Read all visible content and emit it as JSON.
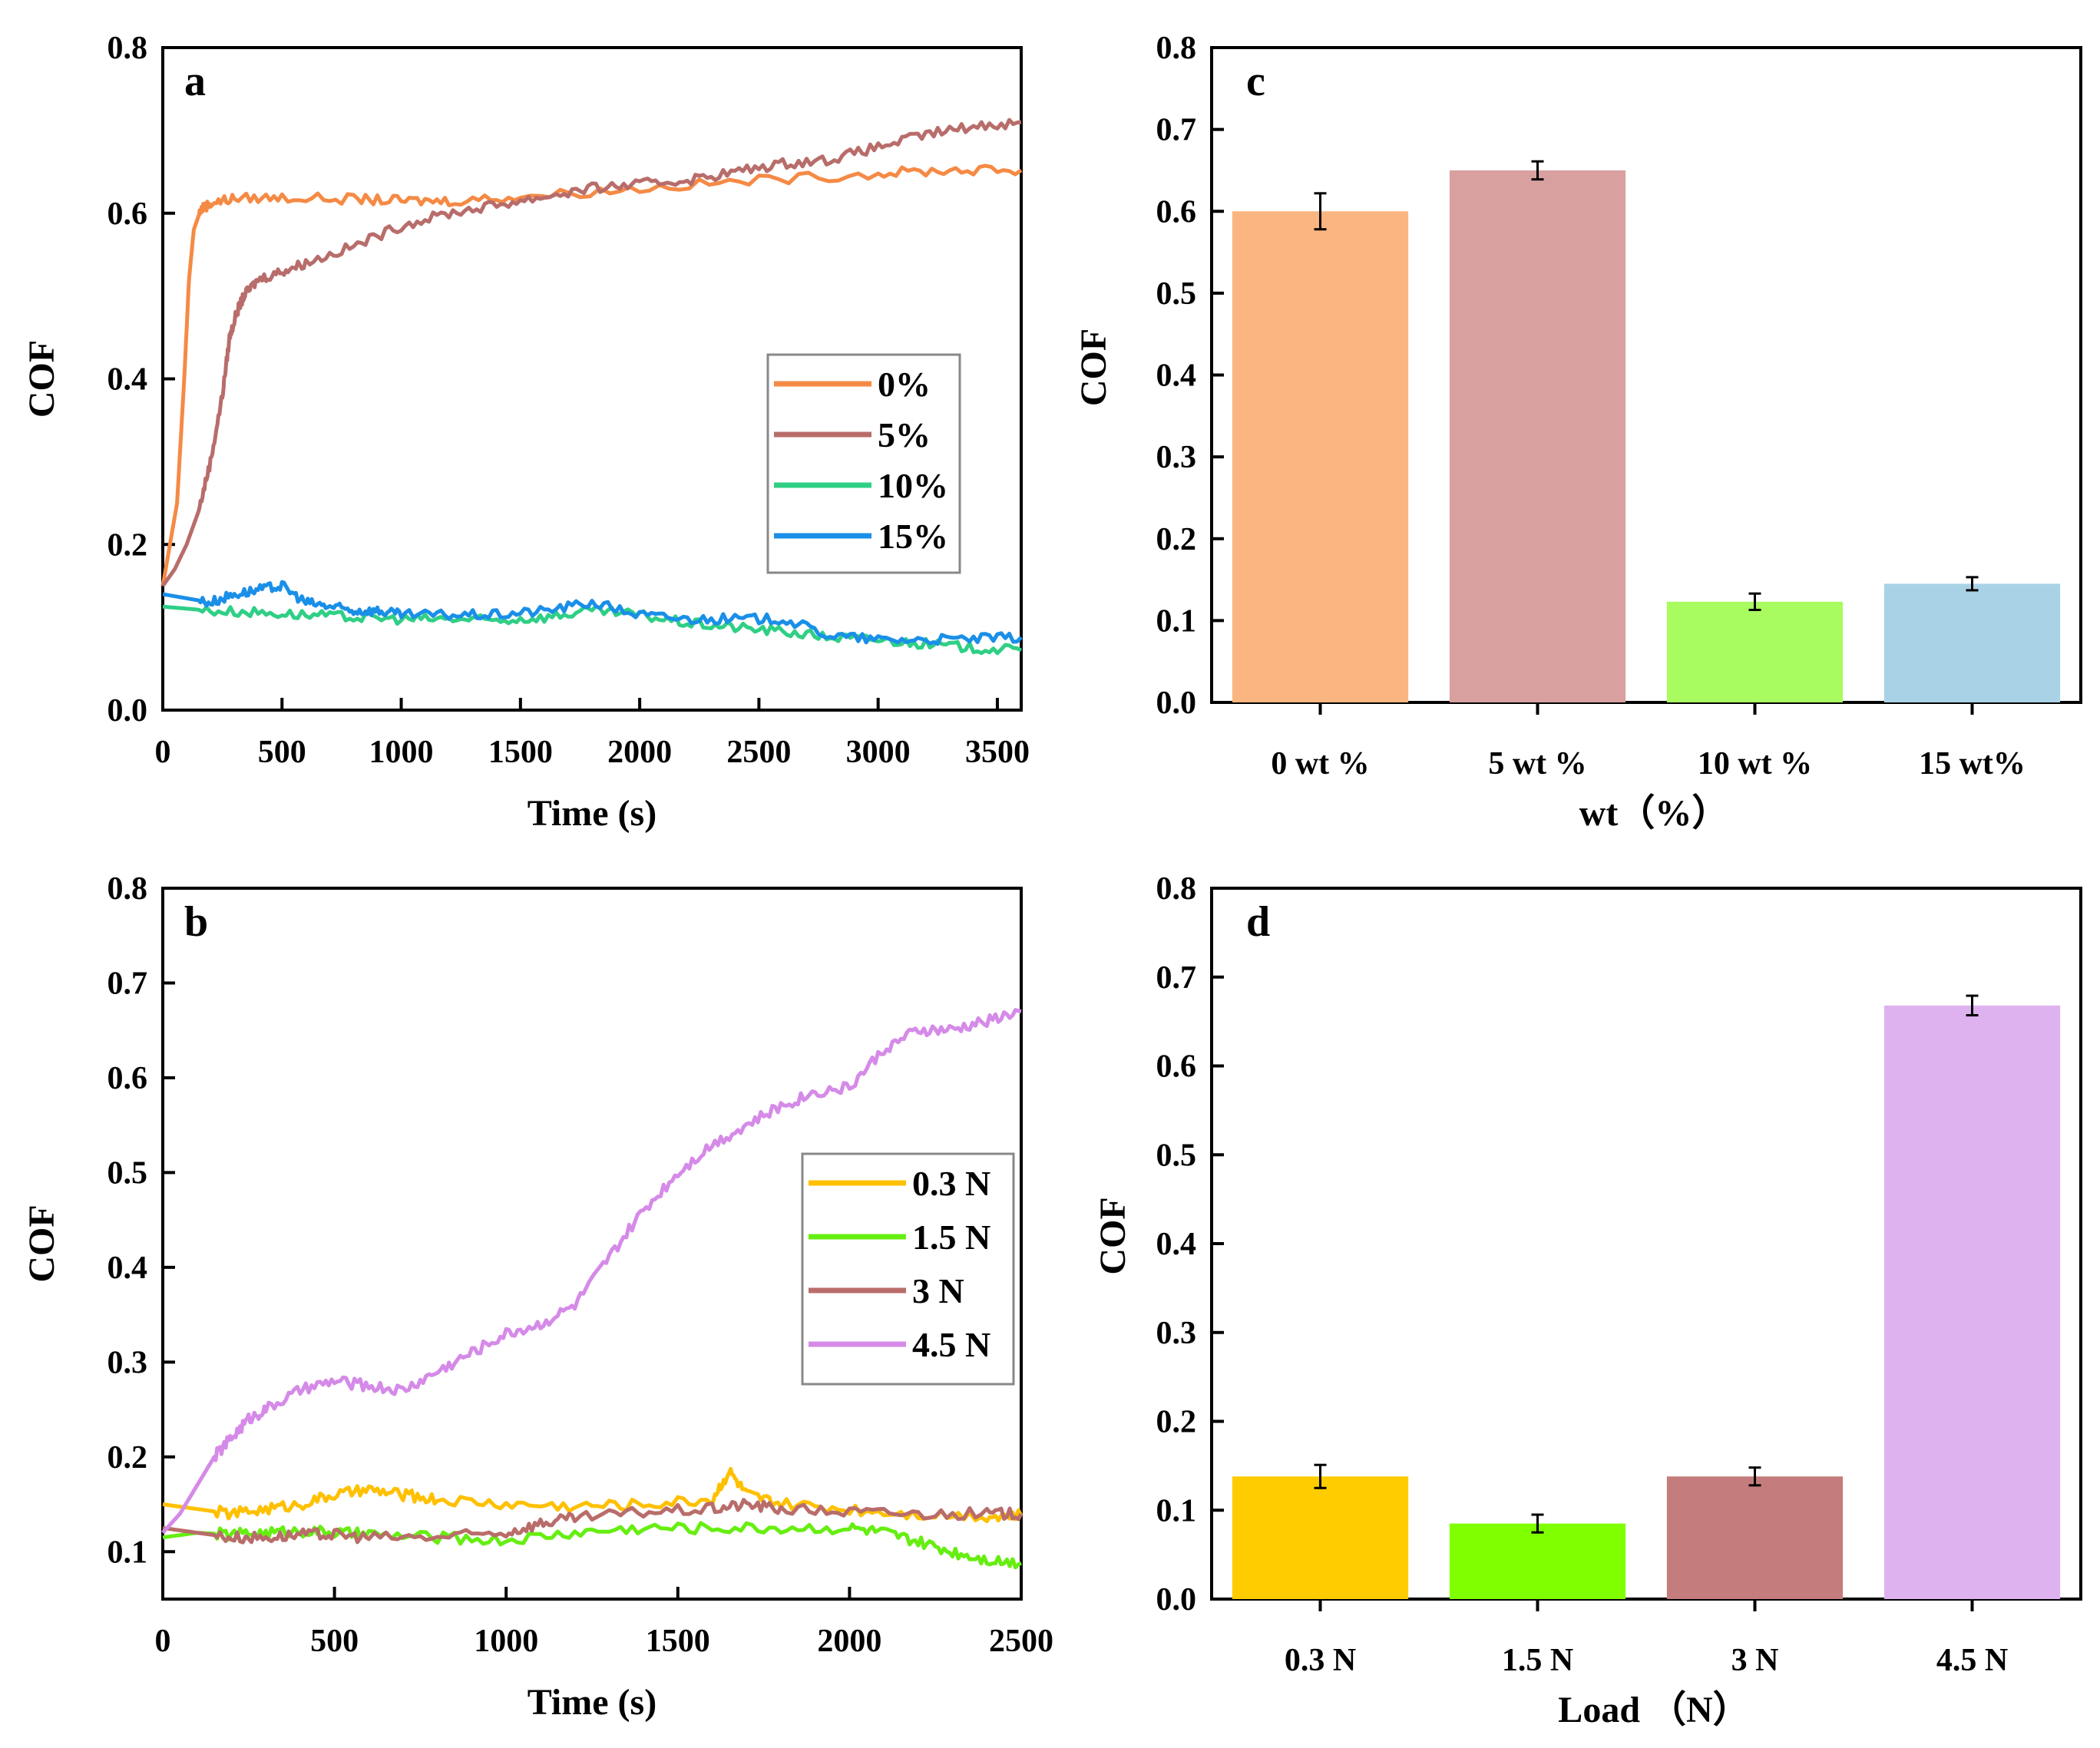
{
  "chart_data": [
    {
      "panel": "a",
      "type": "line",
      "xlabel": "Time (s)",
      "ylabel": "COF",
      "xlim": [
        0,
        3600
      ],
      "ylim": [
        0.0,
        0.8
      ],
      "xticks": [
        0,
        500,
        1000,
        1500,
        2000,
        2500,
        3000,
        3500
      ],
      "yticks": [
        "0.0",
        "0.2",
        "0.4",
        "0.6",
        "0.8"
      ],
      "legend_position": "middle-right",
      "series": [
        {
          "name": "0%",
          "color": "#f58a45",
          "x": [
            0,
            60,
            90,
            110,
            130,
            160,
            200,
            300,
            500,
            800,
            1000,
            1200,
            1500,
            2000,
            2500,
            3000,
            3300,
            3600
          ],
          "y": [
            0.15,
            0.25,
            0.4,
            0.52,
            0.58,
            0.605,
            0.612,
            0.618,
            0.619,
            0.617,
            0.615,
            0.615,
            0.62,
            0.63,
            0.64,
            0.648,
            0.652,
            0.652
          ]
        },
        {
          "name": "5%",
          "color": "#b86d6b",
          "x": [
            0,
            50,
            100,
            150,
            200,
            250,
            280,
            310,
            340,
            400,
            500,
            600,
            800,
            1000,
            1200,
            1400,
            1600,
            1800,
            2000,
            2200,
            2400,
            2600,
            2800,
            3000,
            3200,
            3400,
            3600
          ],
          "y": [
            0.15,
            0.17,
            0.2,
            0.24,
            0.3,
            0.38,
            0.45,
            0.48,
            0.5,
            0.52,
            0.53,
            0.54,
            0.56,
            0.585,
            0.6,
            0.61,
            0.62,
            0.63,
            0.635,
            0.64,
            0.65,
            0.66,
            0.665,
            0.68,
            0.695,
            0.705,
            0.71
          ]
        },
        {
          "name": "10%",
          "color": "#2fcf86",
          "x": [
            0,
            200,
            400,
            600,
            800,
            1000,
            1200,
            1400,
            1600,
            1800,
            2000,
            2200,
            2400,
            2600,
            2800,
            3000,
            3200,
            3400,
            3600
          ],
          "y": [
            0.125,
            0.12,
            0.118,
            0.115,
            0.112,
            0.11,
            0.11,
            0.108,
            0.112,
            0.12,
            0.115,
            0.105,
            0.1,
            0.095,
            0.088,
            0.085,
            0.08,
            0.075,
            0.072
          ]
        },
        {
          "name": "15%",
          "color": "#1a8fe8",
          "x": [
            0,
            100,
            200,
            300,
            400,
            500,
            600,
            700,
            800,
            900,
            1000,
            1200,
            1400,
            1600,
            1800,
            2000,
            2200,
            2400,
            2600,
            2800,
            3000,
            3200,
            3400,
            3600
          ],
          "y": [
            0.14,
            0.135,
            0.13,
            0.14,
            0.145,
            0.15,
            0.13,
            0.125,
            0.12,
            0.12,
            0.115,
            0.115,
            0.115,
            0.12,
            0.13,
            0.115,
            0.11,
            0.11,
            0.11,
            0.09,
            0.085,
            0.085,
            0.086,
            0.088
          ]
        }
      ]
    },
    {
      "panel": "b",
      "type": "line",
      "xlabel": "Time (s)",
      "ylabel": "COF",
      "xlim": [
        0,
        2500
      ],
      "ylim": [
        0.05,
        0.8
      ],
      "xticks": [
        0,
        500,
        1000,
        1500,
        2000,
        2500
      ],
      "yticks": [
        "0.1",
        "0.2",
        "0.3",
        "0.4",
        "0.5",
        "0.6",
        "0.7",
        "0.8"
      ],
      "legend_position": "middle-right",
      "series": [
        {
          "name": "0.3 N",
          "color": "#ffc000",
          "x": [
            0,
            100,
            200,
            300,
            400,
            500,
            600,
            700,
            800,
            1000,
            1200,
            1400,
            1600,
            1650,
            1700,
            1800,
            2000,
            2200,
            2400,
            2500
          ],
          "y": [
            0.15,
            0.145,
            0.14,
            0.145,
            0.15,
            0.16,
            0.165,
            0.16,
            0.155,
            0.15,
            0.148,
            0.15,
            0.155,
            0.185,
            0.16,
            0.15,
            0.145,
            0.14,
            0.138,
            0.138
          ]
        },
        {
          "name": "1.5 N",
          "color": "#66ee11",
          "x": [
            0,
            100,
            200,
            300,
            400,
            500,
            600,
            800,
            1000,
            1200,
            1400,
            1600,
            1800,
            2000,
            2100,
            2200,
            2300,
            2400,
            2500
          ],
          "y": [
            0.115,
            0.12,
            0.118,
            0.12,
            0.122,
            0.12,
            0.118,
            0.115,
            0.112,
            0.12,
            0.125,
            0.125,
            0.125,
            0.125,
            0.12,
            0.11,
            0.1,
            0.092,
            0.088
          ]
        },
        {
          "name": "3 N",
          "color": "#b96d6a",
          "x": [
            0,
            100,
            200,
            300,
            400,
            500,
            600,
            800,
            1000,
            1100,
            1200,
            1400,
            1600,
            1700,
            1800,
            2000,
            2200,
            2400,
            2500
          ],
          "y": [
            0.125,
            0.12,
            0.115,
            0.115,
            0.118,
            0.118,
            0.115,
            0.115,
            0.12,
            0.13,
            0.135,
            0.142,
            0.145,
            0.15,
            0.145,
            0.142,
            0.14,
            0.14,
            0.14
          ]
        },
        {
          "name": "4.5 N",
          "color": "#d58ae8",
          "x": [
            0,
            50,
            100,
            150,
            200,
            250,
            300,
            400,
            500,
            600,
            700,
            800,
            900,
            1000,
            1100,
            1200,
            1300,
            1400,
            1500,
            1600,
            1700,
            1800,
            1900,
            2000,
            2100,
            2200,
            2300,
            2400,
            2500
          ],
          "y": [
            0.12,
            0.14,
            0.17,
            0.2,
            0.22,
            0.24,
            0.25,
            0.27,
            0.28,
            0.275,
            0.27,
            0.29,
            0.31,
            0.33,
            0.34,
            0.36,
            0.41,
            0.46,
            0.5,
            0.53,
            0.55,
            0.57,
            0.585,
            0.59,
            0.63,
            0.65,
            0.65,
            0.66,
            0.67
          ]
        }
      ]
    },
    {
      "panel": "c",
      "type": "bar",
      "xlabel": "wt（%）",
      "ylabel": "COF",
      "ylim": [
        0.0,
        0.8
      ],
      "yticks": [
        "0.0",
        "0.1",
        "0.2",
        "0.3",
        "0.4",
        "0.5",
        "0.6",
        "0.7",
        "0.8"
      ],
      "categories": [
        "0 wt %",
        "5 wt %",
        "10 wt %",
        "15 wt%"
      ],
      "values": [
        0.6,
        0.65,
        0.123,
        0.145
      ],
      "errors": [
        0.022,
        0.011,
        0.01,
        0.008
      ],
      "colors": [
        "#fbb580",
        "#d8a1a0",
        "#a9fc60",
        "#a9d2e6"
      ]
    },
    {
      "panel": "d",
      "type": "bar",
      "xlabel": "Load （N）",
      "ylabel": "COF",
      "ylim": [
        0.0,
        0.8
      ],
      "yticks": [
        "0.0",
        "0.1",
        "0.2",
        "0.3",
        "0.4",
        "0.5",
        "0.6",
        "0.7",
        "0.8"
      ],
      "categories": [
        "0.3 N",
        "1.5 N",
        "3 N",
        "4.5 N"
      ],
      "values": [
        0.138,
        0.085,
        0.138,
        0.668
      ],
      "errors": [
        0.013,
        0.01,
        0.01,
        0.011
      ],
      "colors": [
        "#ffcc00",
        "#7fff00",
        "#c47d7c",
        "#deb2ef"
      ]
    }
  ]
}
